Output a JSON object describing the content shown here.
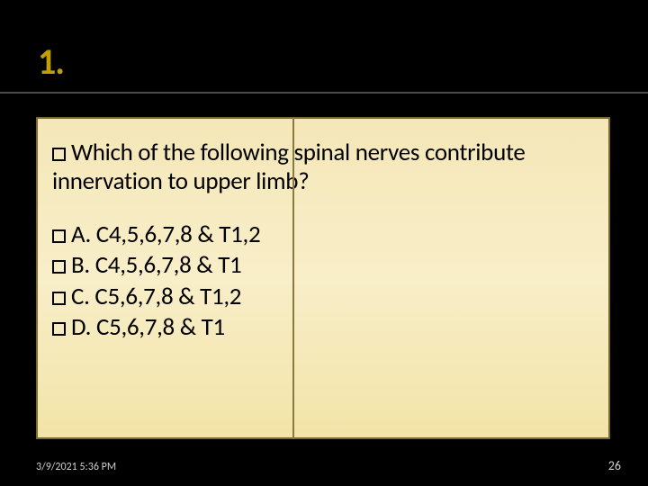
{
  "slide": {
    "title": "1.",
    "title_color": "#c0a000",
    "title_fontsize": 40,
    "background_color": "#000000",
    "divider_color": "#4a4a4a"
  },
  "card": {
    "gradient_top": "#f4e7b8",
    "gradient_mid": "#f8eec8",
    "gradient_bottom": "#f2e4a8",
    "border_color": "#7a6a30",
    "vline_color": "#8a7a40",
    "text_color": "#000000",
    "body_fontsize": 27
  },
  "question": {
    "text": "Which of the following spinal nerves contribute innervation to upper limb?"
  },
  "options": {
    "A": "A. C4,5,6,7,8 & T1,2",
    "B": "B. C4,5,6,7,8 & T1",
    "C": "C. C5,6,7,8 & T1,2",
    "D": "D. C5,6,7,8 & T1"
  },
  "footer": {
    "timestamp": "3/9/2021 5:36 PM",
    "page_number": "26",
    "text_color": "#cfcfcf",
    "timestamp_fontsize": 12,
    "pagenum_fontsize": 14
  }
}
